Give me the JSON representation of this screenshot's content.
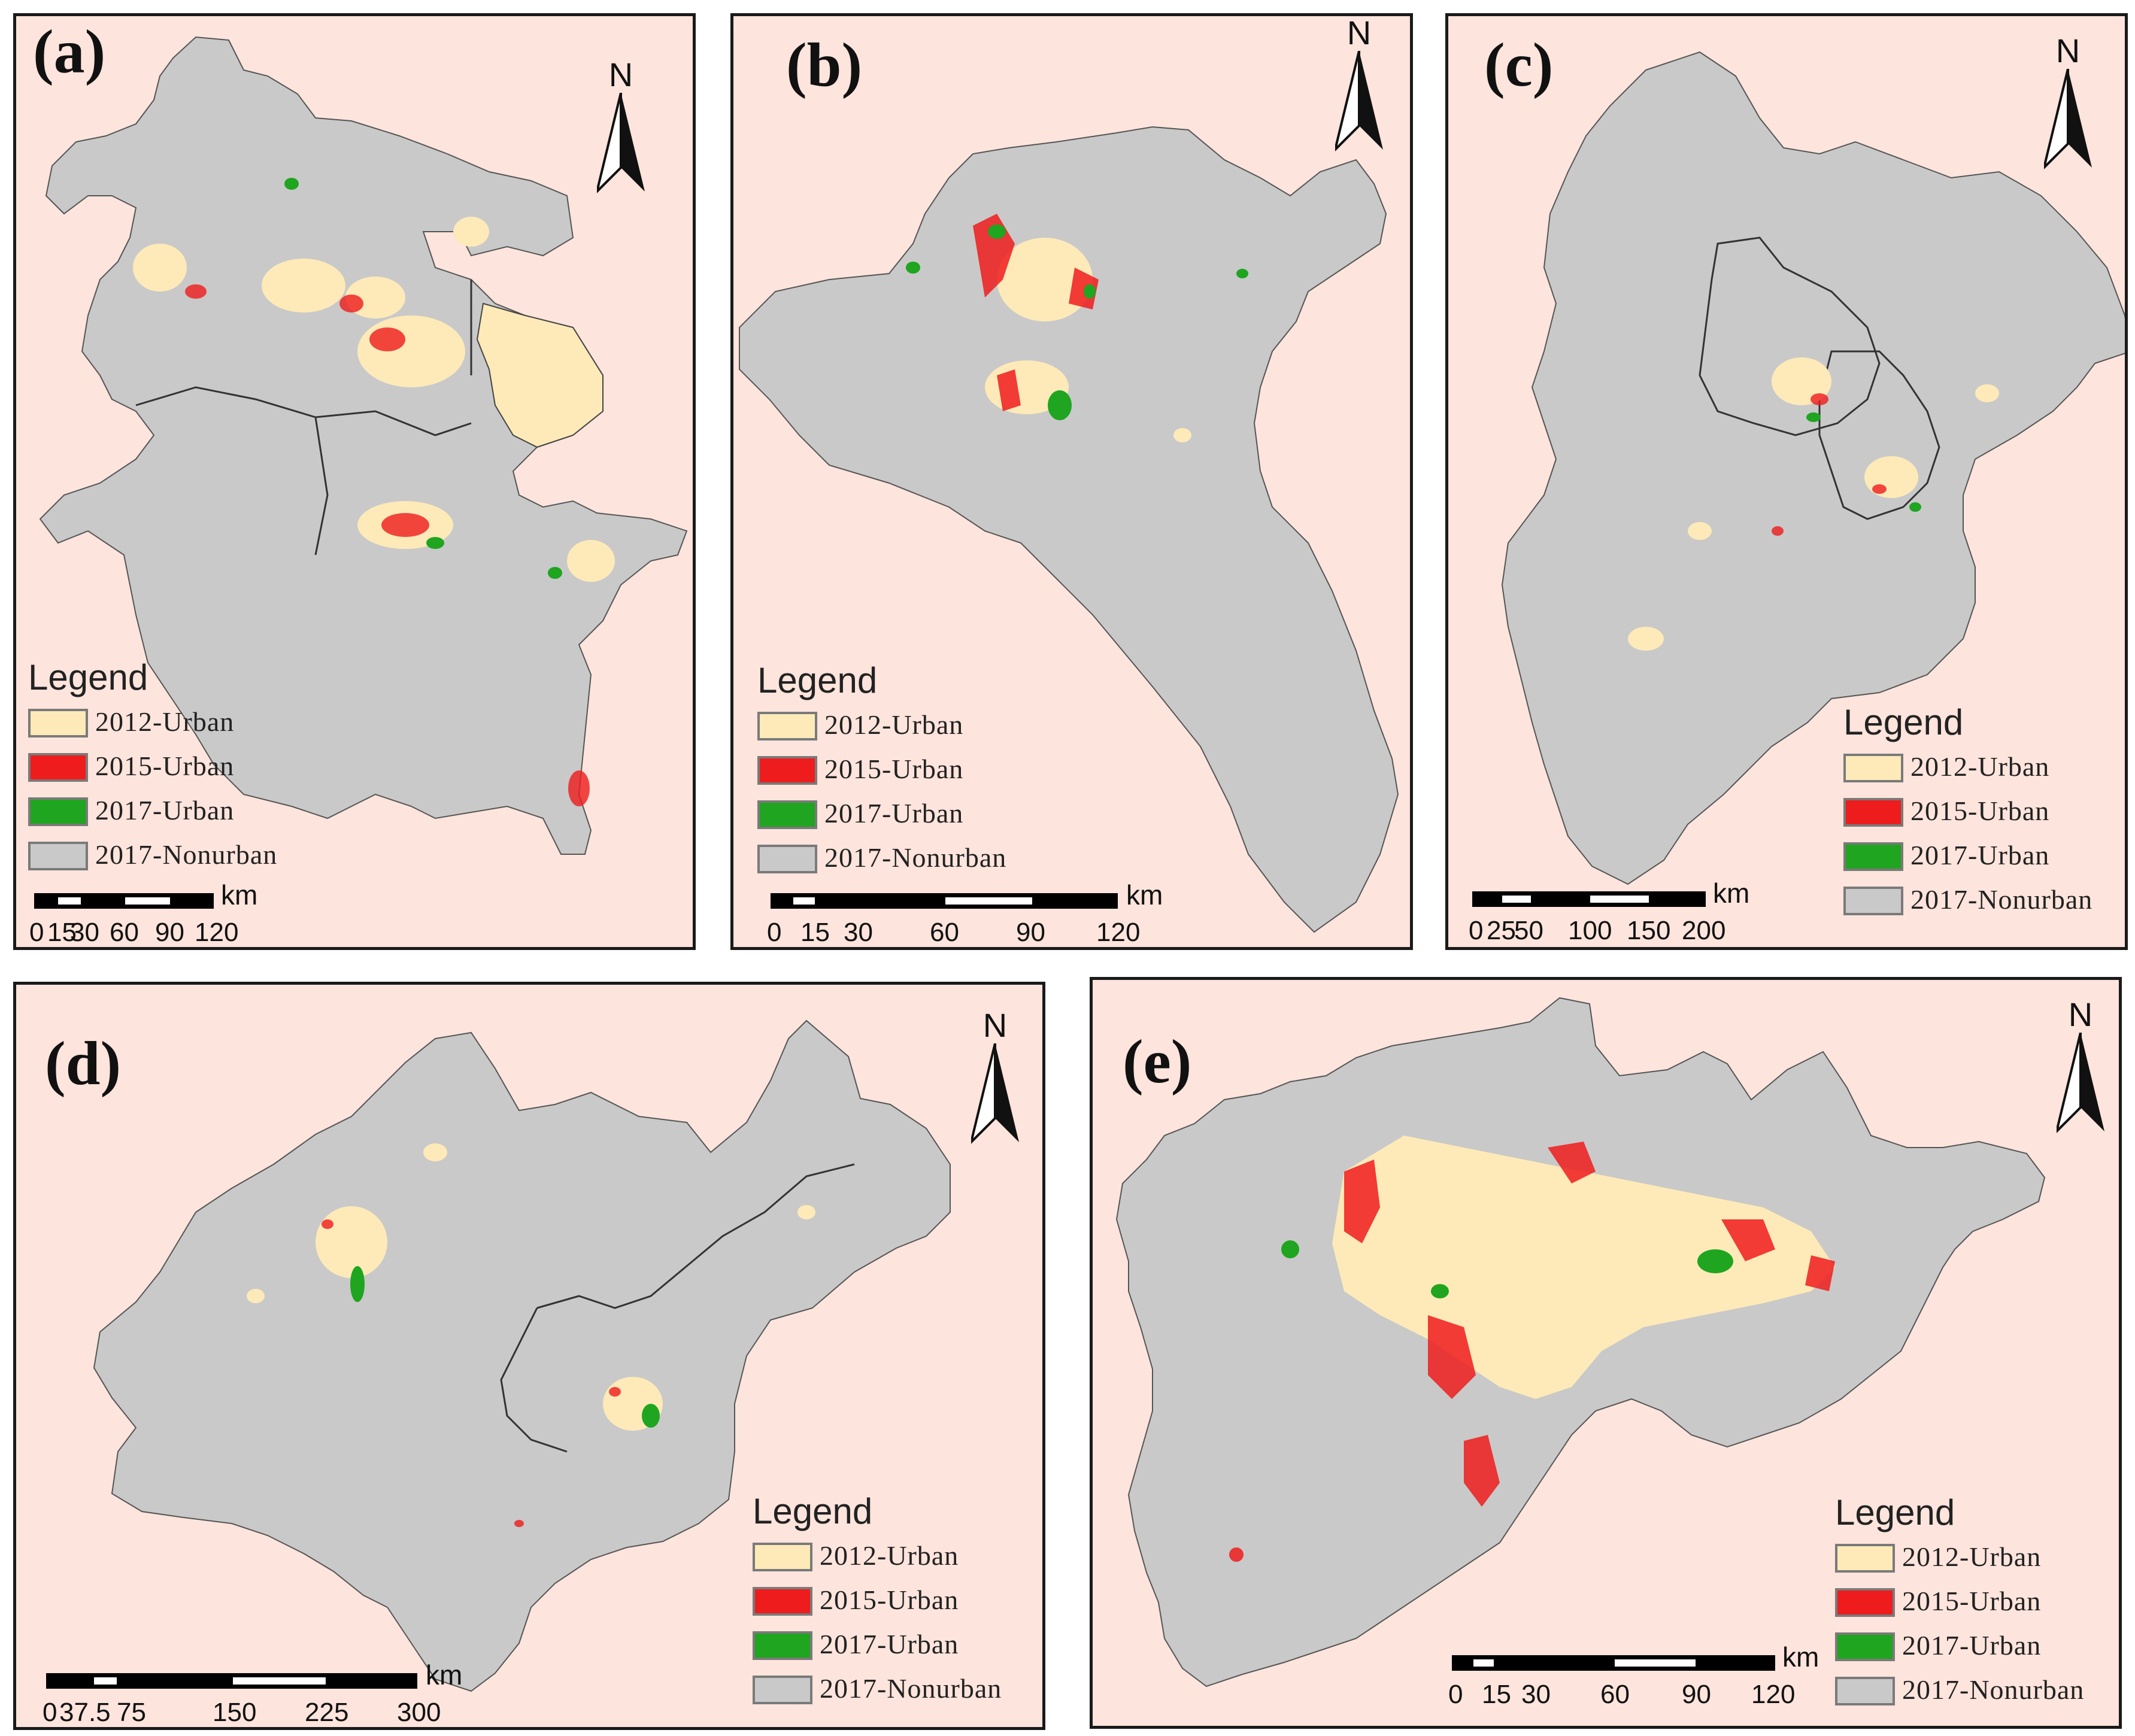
{
  "panels": [
    {
      "id": "a",
      "label": "(a)",
      "north": "N",
      "legend": {
        "title": "Legend",
        "items": [
          "2012-Urban",
          "2015-Urban",
          "2017-Urban",
          "2017-Nonurban"
        ]
      },
      "scale": {
        "unit": "km",
        "ticks": [
          "0",
          "15",
          "30",
          "60",
          "90",
          "120"
        ]
      }
    },
    {
      "id": "b",
      "label": "(b)",
      "north": "N",
      "legend": {
        "title": "Legend",
        "items": [
          "2012-Urban",
          "2015-Urban",
          "2017-Urban",
          "2017-Nonurban"
        ]
      },
      "scale": {
        "unit": "km",
        "ticks": [
          "0",
          "15",
          "30",
          "60",
          "90",
          "120"
        ]
      }
    },
    {
      "id": "c",
      "label": "(c)",
      "north": "N",
      "legend": {
        "title": "Legend",
        "items": [
          "2012-Urban",
          "2015-Urban",
          "2017-Urban",
          "2017-Nonurban"
        ]
      },
      "scale": {
        "unit": "km",
        "ticks": [
          "0",
          "25",
          "50",
          "100",
          "150",
          "200"
        ]
      }
    },
    {
      "id": "d",
      "label": "(d)",
      "north": "N",
      "legend": {
        "title": "Legend",
        "items": [
          "2012-Urban",
          "2015-Urban",
          "2017-Urban",
          "2017-Nonurban"
        ]
      },
      "scale": {
        "unit": "km",
        "ticks": [
          "0",
          "37.5",
          "75",
          "150",
          "225",
          "300"
        ]
      }
    },
    {
      "id": "e",
      "label": "(e)",
      "north": "N",
      "legend": {
        "title": "Legend",
        "items": [
          "2012-Urban",
          "2015-Urban",
          "2017-Urban",
          "2017-Nonurban"
        ]
      },
      "scale": {
        "unit": "km",
        "ticks": [
          "0",
          "15",
          "30",
          "60",
          "90",
          "120"
        ]
      }
    }
  ],
  "colors": {
    "background": "#fde4dc",
    "2012-Urban": "#fdeab8",
    "2015-Urban": "#ee1c1c",
    "2017-Urban": "#1fa51f",
    "2017-Nonurban": "#c9c9c9"
  }
}
